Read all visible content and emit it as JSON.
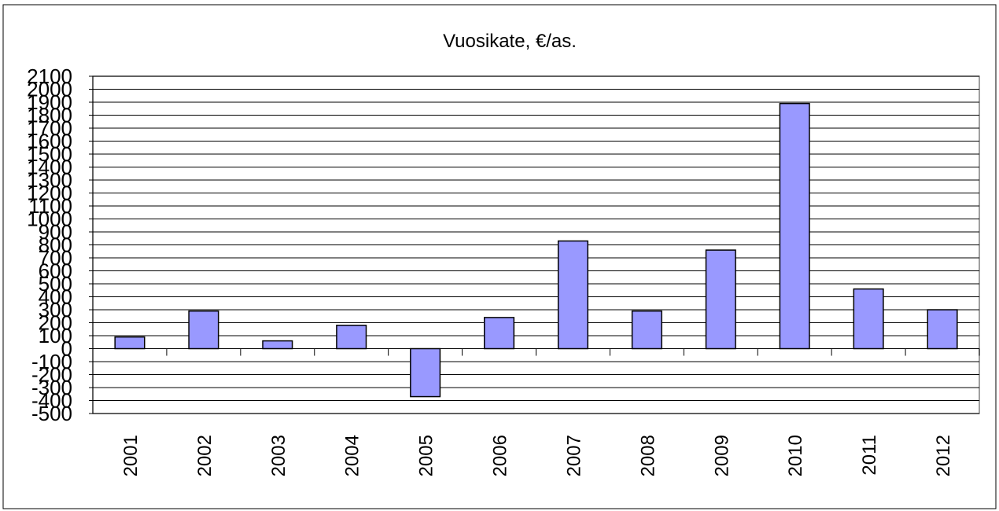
{
  "chart_data": {
    "type": "bar",
    "title": "Vuosikate, €/as.",
    "categories": [
      "2001",
      "2002",
      "2003",
      "2004",
      "2005",
      "2006",
      "2007",
      "2008",
      "2009",
      "2010",
      "2011",
      "2012"
    ],
    "values": [
      90,
      290,
      60,
      180,
      -370,
      240,
      830,
      290,
      760,
      1890,
      460,
      300
    ],
    "color": "#9999ff",
    "ylim": [
      -500,
      2100
    ],
    "yticks": [
      -500,
      -400,
      -300,
      -200,
      -100,
      0,
      100,
      200,
      300,
      400,
      500,
      600,
      700,
      800,
      900,
      1000,
      1100,
      1200,
      1300,
      1400,
      1500,
      1600,
      1700,
      1800,
      1900,
      2000,
      2100
    ],
    "grid": true
  }
}
